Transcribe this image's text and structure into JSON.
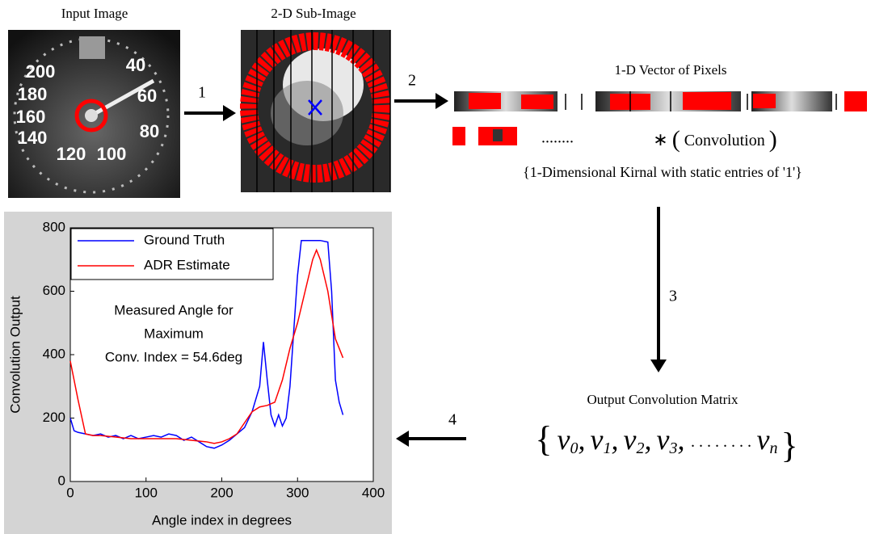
{
  "labels": {
    "input_image": "Input Image",
    "sub_image": "2-D Sub-Image",
    "vector": "1-D Vector of Pixels",
    "dots": "........",
    "kernel": "{1-Dimensional Kirnal with static entries of '1'}",
    "output_title": "Output Convolution Matrix"
  },
  "gauge_labels": [
    "200",
    "40",
    "180",
    "60",
    "160",
    "80",
    "140",
    "120",
    "100"
  ],
  "steps": [
    "1",
    "2",
    "3",
    "4"
  ],
  "convolution": {
    "symbol": "∗",
    "open": "(",
    "word": "Convolution",
    "close": ")"
  },
  "matrix": {
    "open": "{",
    "separator": ",",
    "ellipsis": ". . . . . . . .",
    "close": "}",
    "items": [
      {
        "base": "v",
        "sub": "0"
      },
      {
        "base": "v",
        "sub": "1"
      },
      {
        "base": "v",
        "sub": "2"
      },
      {
        "base": "v",
        "sub": "3"
      },
      {
        "base": "v",
        "sub": "n"
      }
    ]
  },
  "chart_data": {
    "type": "line",
    "xlabel": "Angle index in degrees",
    "ylabel": "Convolution Output",
    "xlim": [
      0,
      400
    ],
    "ylim": [
      0,
      800
    ],
    "xticks": [
      0,
      100,
      200,
      300,
      400
    ],
    "yticks": [
      0,
      200,
      400,
      600,
      800
    ],
    "legend": "upper left",
    "annotation": [
      "Measured Angle for",
      "Maximum",
      "Conv. Index = 54.6deg"
    ],
    "series": [
      {
        "name": "Ground Truth",
        "color": "#0000ff",
        "x": [
          0,
          5,
          10,
          20,
          30,
          40,
          50,
          60,
          70,
          80,
          90,
          100,
          110,
          120,
          130,
          140,
          150,
          160,
          170,
          180,
          190,
          200,
          210,
          220,
          230,
          240,
          250,
          255,
          260,
          265,
          270,
          275,
          280,
          285,
          290,
          300,
          305,
          310,
          320,
          330,
          340,
          345,
          350,
          355,
          360
        ],
        "values": [
          200,
          160,
          155,
          150,
          145,
          150,
          140,
          145,
          135,
          145,
          135,
          140,
          145,
          140,
          150,
          145,
          130,
          140,
          125,
          110,
          105,
          115,
          130,
          150,
          170,
          220,
          300,
          440,
          320,
          210,
          175,
          210,
          175,
          200,
          300,
          650,
          760,
          760,
          760,
          760,
          755,
          600,
          320,
          250,
          210
        ]
      },
      {
        "name": "ADR Estimate",
        "color": "#ff0000",
        "x": [
          0,
          10,
          20,
          30,
          40,
          60,
          80,
          100,
          120,
          140,
          160,
          180,
          190,
          200,
          210,
          220,
          230,
          240,
          250,
          260,
          270,
          280,
          290,
          300,
          310,
          320,
          325,
          330,
          340,
          350,
          360
        ],
        "values": [
          380,
          260,
          150,
          145,
          145,
          140,
          135,
          135,
          135,
          135,
          130,
          125,
          120,
          125,
          135,
          150,
          185,
          220,
          235,
          240,
          250,
          320,
          420,
          500,
          600,
          700,
          730,
          700,
          600,
          450,
          390
        ]
      }
    ]
  }
}
